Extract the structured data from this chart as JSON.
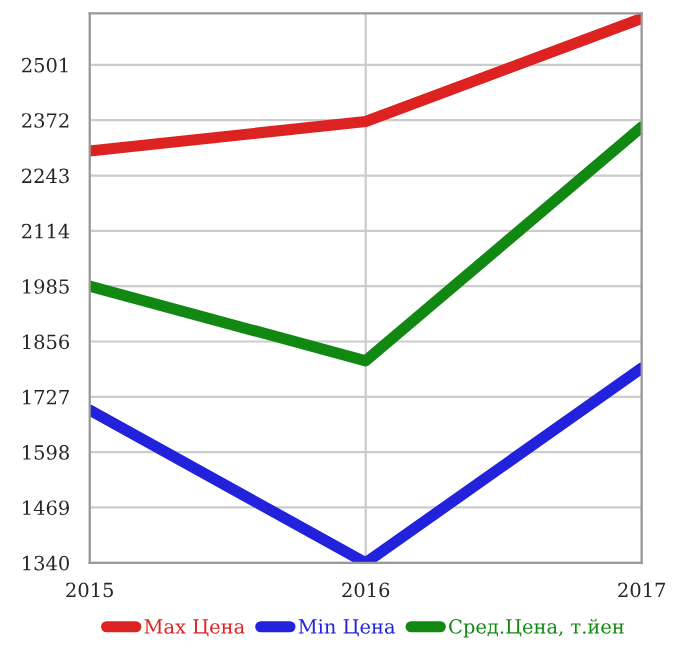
{
  "chart_data": {
    "type": "line",
    "x": [
      2015,
      2016,
      2017
    ],
    "series": [
      {
        "name": "Max Цена",
        "color": "#dd2222",
        "values": [
          2300,
          2369,
          2609
        ]
      },
      {
        "name": "Min Цена",
        "color": "#2222dd",
        "values": [
          1696,
          1340,
          1794
        ]
      },
      {
        "name": "Сред.Цена, т.йен",
        "color": "#118811",
        "values": [
          1985,
          1811,
          2356
        ]
      }
    ],
    "xlim": [
      2015,
      2017
    ],
    "xticks": [
      2015,
      2016,
      2017
    ],
    "ylim": [
      1340,
      2621
    ],
    "yticks": [
      1340,
      1469,
      1598,
      1727,
      1856,
      1985,
      2114,
      2243,
      2372,
      2501
    ],
    "grid": true,
    "legend": "bottom",
    "marker": "none",
    "line_style": "solid"
  }
}
